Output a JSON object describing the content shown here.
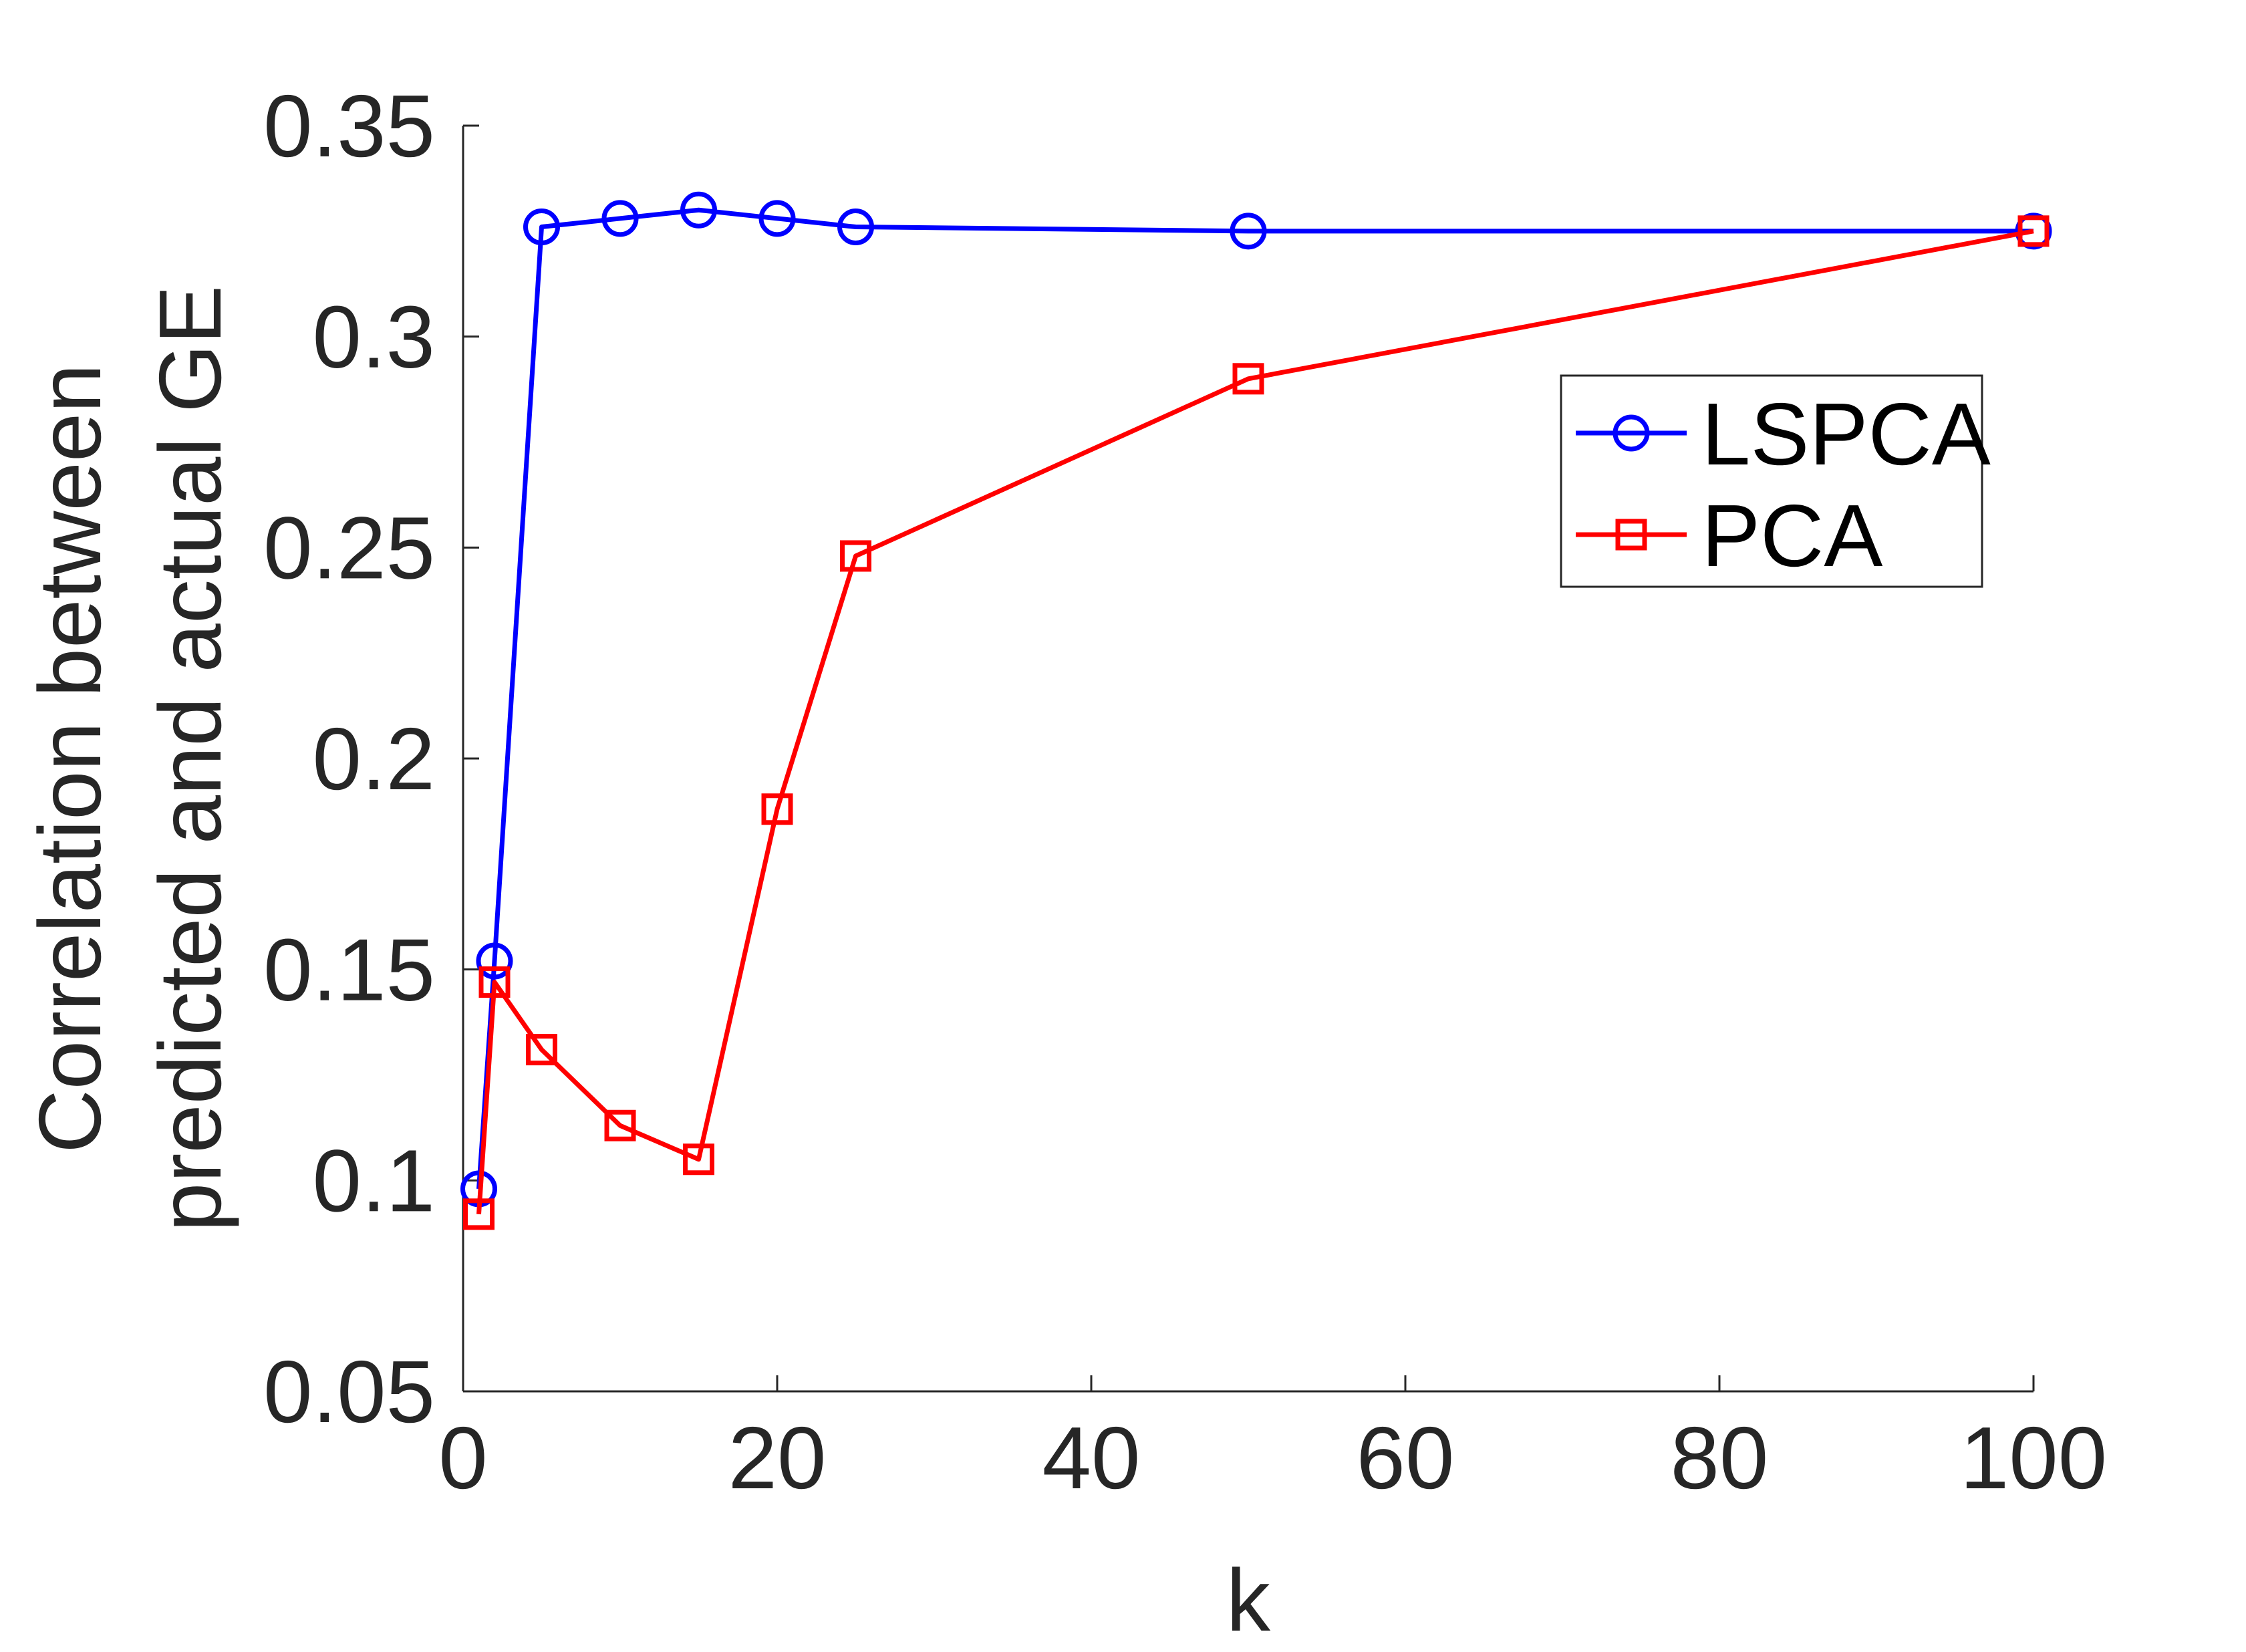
{
  "chart_data": {
    "type": "line",
    "title": "",
    "xlabel": "k",
    "ylabel_lines": [
      "Correlation between",
      "predicted and actual GE"
    ],
    "xlim": [
      0,
      100
    ],
    "ylim": [
      0.05,
      0.35
    ],
    "xticks": [
      0,
      20,
      40,
      60,
      80,
      100
    ],
    "yticks": [
      0.05,
      0.1,
      0.15,
      0.2,
      0.25,
      0.3,
      0.35
    ],
    "xtick_labels": [
      "0",
      "20",
      "40",
      "60",
      "80",
      "100"
    ],
    "ytick_labels": [
      "0.05",
      "0.1",
      "0.15",
      "0.2",
      "0.25",
      "0.3",
      "0.35"
    ],
    "grid": false,
    "legend_position": "upper-right",
    "series": [
      {
        "name": "LSPCA",
        "color": "#0000ff",
        "marker": "circle",
        "x": [
          1,
          2,
          5,
          10,
          15,
          20,
          25,
          50,
          100
        ],
        "y": [
          0.098,
          0.152,
          0.326,
          0.328,
          0.33,
          0.328,
          0.326,
          0.325,
          0.325
        ]
      },
      {
        "name": "PCA",
        "color": "#ff0000",
        "marker": "square",
        "x": [
          1,
          2,
          5,
          10,
          15,
          20,
          25,
          50,
          100
        ],
        "y": [
          0.092,
          0.147,
          0.131,
          0.113,
          0.105,
          0.188,
          0.248,
          0.29,
          0.325
        ]
      }
    ]
  }
}
